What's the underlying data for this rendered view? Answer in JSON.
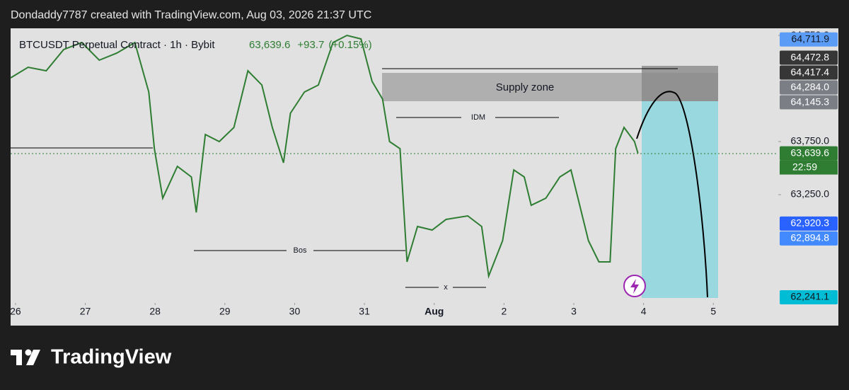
{
  "header": "Dondaddy7787 created with TradingView.com, Aug 03, 2026 21:37 UTC",
  "chart_data": {
    "type": "line",
    "title": "BTCUSDT Perpetual Contract · 1h · Bybit",
    "last_price": "63,639.6",
    "change": "+93.7",
    "change_percent": "(+0.15%)",
    "color": "#2e7d32",
    "x": [
      -0.07,
      0.18,
      0.44,
      0.69,
      0.95,
      1.2,
      1.45,
      1.71,
      1.91,
      1.99,
      2.11,
      2.32,
      2.52,
      2.59,
      2.72,
      2.92,
      3.13,
      3.33,
      3.53,
      3.68,
      3.84,
      3.94,
      4.14,
      4.34,
      4.55,
      4.75,
      4.95,
      5.11,
      5.26,
      5.36,
      5.51,
      5.61,
      5.76,
      5.97,
      6.17,
      6.48,
      6.68,
      6.78,
      6.98,
      7.14,
      7.29,
      7.39,
      7.6,
      7.8,
      7.96,
      8.06,
      8.21,
      8.36,
      8.52,
      8.6,
      8.72,
      8.87,
      8.92
    ],
    "values": [
      64350,
      64450,
      64417,
      64617,
      64683,
      64517,
      64583,
      64683,
      64217,
      63683,
      63217,
      63517,
      63417,
      63083,
      63817,
      63750,
      63883,
      64417,
      64283,
      63883,
      63550,
      64017,
      64217,
      64283,
      64683,
      64750,
      64717,
      64317,
      64150,
      63750,
      63683,
      62617,
      62950,
      62917,
      63017,
      63050,
      62950,
      62483,
      62817,
      63483,
      63417,
      63150,
      63217,
      63417,
      63483,
      63217,
      62817,
      62617,
      62617,
      63683,
      63883,
      63750,
      63640
    ],
    "xlim": [
      -0.07,
      10.93
    ],
    "xticks": [
      {
        "value": 0,
        "label": "26"
      },
      {
        "value": 1,
        "label": "27"
      },
      {
        "value": 2,
        "label": "28"
      },
      {
        "value": 3,
        "label": "29"
      },
      {
        "value": 4,
        "label": "30"
      },
      {
        "value": 5,
        "label": "31"
      },
      {
        "value": 6,
        "label": "Aug"
      },
      {
        "value": 7,
        "label": "2"
      },
      {
        "value": 8,
        "label": "3"
      },
      {
        "value": 9,
        "label": "4"
      },
      {
        "value": 10,
        "label": "5"
      }
    ],
    "ylim": [
      62150,
      64817
    ],
    "yticks": [
      {
        "value": 63250,
        "label": "63,250.0"
      },
      {
        "value": 63750,
        "label": "63,750.0"
      },
      {
        "value": 64750,
        "label": "64,750.0"
      }
    ],
    "price_labels": [
      {
        "value": 64711.9,
        "label": "64,711.9",
        "color": "#5b9cf6",
        "text_color": "#131722"
      },
      {
        "value": 64472.8,
        "label": "64,472.8",
        "color": "#363636",
        "text_color": "#ffffff"
      },
      {
        "value": 64417.4,
        "label": "64,417.4",
        "color": "#363636",
        "text_color": "#ffffff"
      },
      {
        "value": 64284.0,
        "label": "64,284.0",
        "color": "#7c7e86",
        "text_color": "#ffffff"
      },
      {
        "value": 64145.3,
        "label": "64,145.3",
        "color": "#7c7e86",
        "text_color": "#ffffff"
      },
      {
        "value": 63639.6,
        "label": "63,639.6",
        "color": "#2e7d32",
        "text_color": "#ffffff"
      },
      {
        "value": 62920.3,
        "label": "62,920.3",
        "color": "#2962ff",
        "text_color": "#ffffff"
      },
      {
        "value": 62894.8,
        "label": "62,894.8",
        "color": "#448aff",
        "text_color": "#ffffff"
      },
      {
        "value": 62241.1,
        "label": "62,241.1",
        "color": "#00bcd4",
        "text_color": "#131722"
      }
    ],
    "countdown": "22:59",
    "annotations": {
      "supply": "Supply zone",
      "idm": "IDM",
      "bos": "Bos",
      "x": "x"
    }
  },
  "footer": "TradingView"
}
